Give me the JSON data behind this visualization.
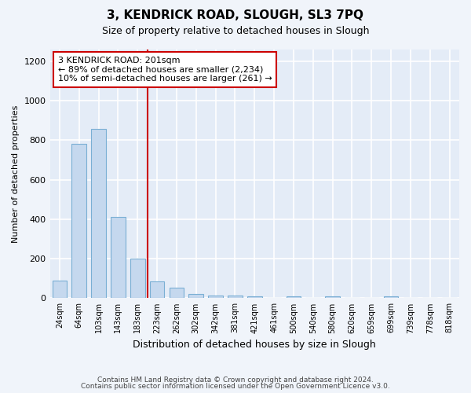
{
  "title": "3, KENDRICK ROAD, SLOUGH, SL3 7PQ",
  "subtitle": "Size of property relative to detached houses in Slough",
  "xlabel": "Distribution of detached houses by size in Slough",
  "ylabel": "Number of detached properties",
  "categories": [
    "24sqm",
    "64sqm",
    "103sqm",
    "143sqm",
    "183sqm",
    "223sqm",
    "262sqm",
    "302sqm",
    "342sqm",
    "381sqm",
    "421sqm",
    "461sqm",
    "500sqm",
    "540sqm",
    "580sqm",
    "620sqm",
    "659sqm",
    "699sqm",
    "739sqm",
    "778sqm",
    "818sqm"
  ],
  "values": [
    90,
    780,
    855,
    410,
    200,
    85,
    55,
    22,
    15,
    15,
    10,
    0,
    10,
    0,
    10,
    0,
    0,
    10,
    0,
    0,
    0
  ],
  "bar_color": "#c5d8ee",
  "bar_edge_color": "#7aafd4",
  "vline_color": "#cc0000",
  "vline_x_index": 4.5,
  "annotation_text": "3 KENDRICK ROAD: 201sqm\n← 89% of detached houses are smaller (2,234)\n10% of semi-detached houses are larger (261) →",
  "annotation_box_facecolor": "#ffffff",
  "annotation_box_edgecolor": "#cc0000",
  "ylim": [
    0,
    1260
  ],
  "yticks": [
    0,
    200,
    400,
    600,
    800,
    1000,
    1200
  ],
  "bg_color": "#f0f4fa",
  "plot_bg_color": "#e4ecf7",
  "grid_color": "#ffffff",
  "footer_line1": "Contains HM Land Registry data © Crown copyright and database right 2024.",
  "footer_line2": "Contains public sector information licensed under the Open Government Licence v3.0."
}
